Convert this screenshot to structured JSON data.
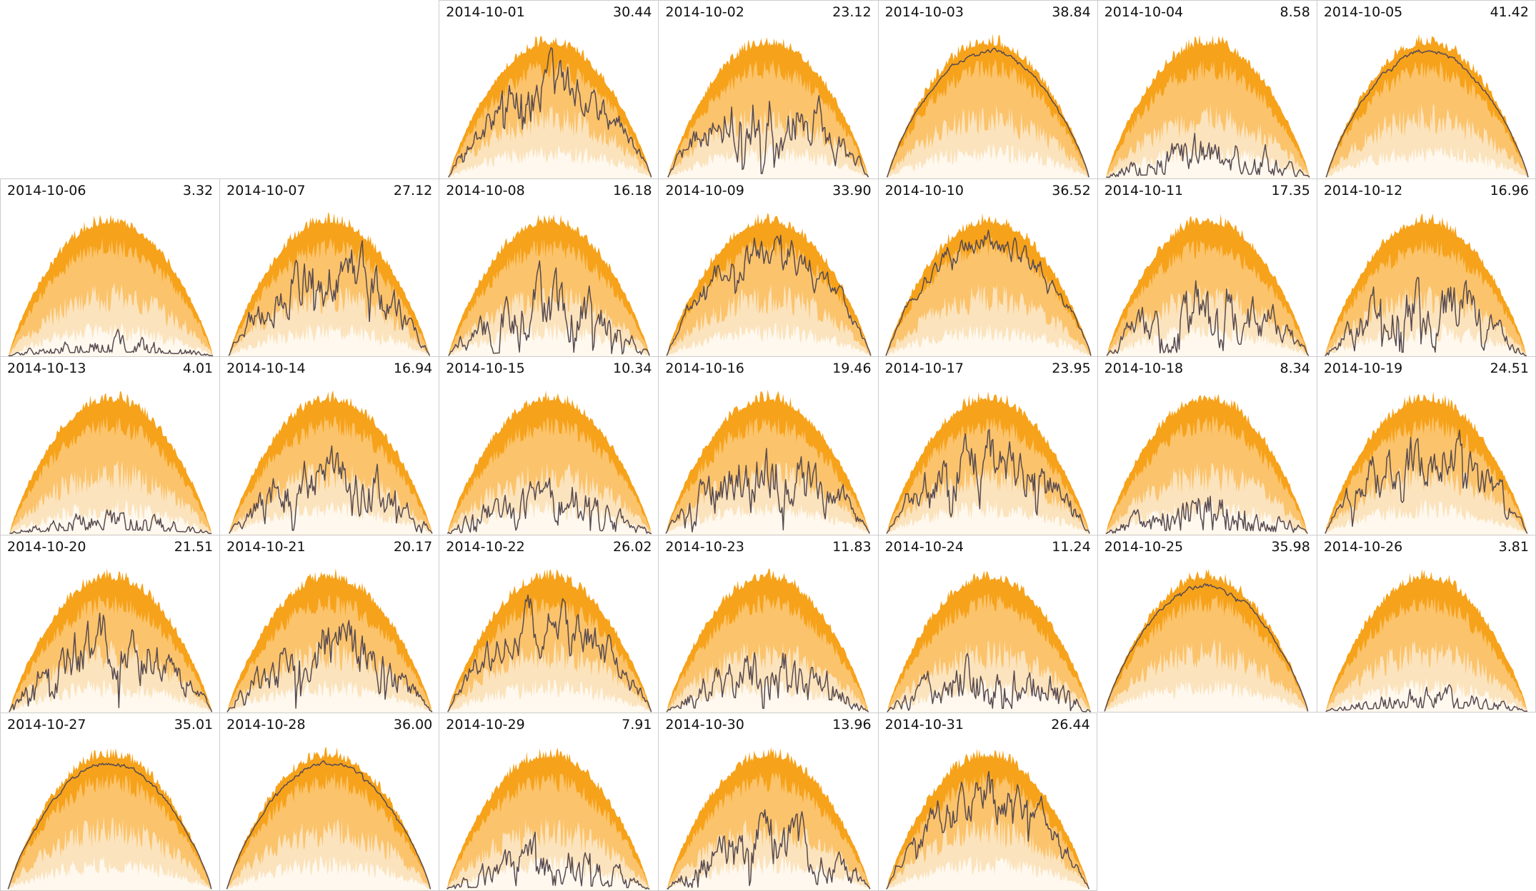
{
  "page": {
    "background": "#ffffff",
    "border_color": "#cccccc",
    "label_color": "#111111"
  },
  "chart_data": {
    "type": "area",
    "title": "",
    "xlabel": "",
    "ylabel": "",
    "layout": {
      "grid_columns": 7,
      "grid_rows": 5,
      "first_subplot_grid_index": 2,
      "axes_hidden": true,
      "legend": "none",
      "description": "Calendar grid of daily profile subplots: nested orange envelope bands (clear-sky/percentile range by time of day) with a dark measured line; date at top-left and daily total at top-right of each cell."
    },
    "style": {
      "envelope_bands": [
        {
          "name": "outer-band",
          "color": "#f6a21b",
          "level": 1.0
        },
        {
          "name": "mid-band",
          "color": "#fbc36b",
          "level": 0.9
        },
        {
          "name": "inner-band",
          "color": "#fbe3bd",
          "level": 0.56
        },
        {
          "name": "core-band",
          "color": "#fef8ee",
          "level": 0.26
        }
      ],
      "measured_line_color": "#574a50"
    },
    "subplots": [
      {
        "date": "2014-10-01",
        "value": 30.44,
        "value_label": "30.44"
      },
      {
        "date": "2014-10-02",
        "value": 23.12,
        "value_label": "23.12"
      },
      {
        "date": "2014-10-03",
        "value": 38.84,
        "value_label": "38.84"
      },
      {
        "date": "2014-10-04",
        "value": 8.58,
        "value_label": "8.58"
      },
      {
        "date": "2014-10-05",
        "value": 41.42,
        "value_label": "41.42"
      },
      {
        "date": "2014-10-06",
        "value": 3.32,
        "value_label": "3.32"
      },
      {
        "date": "2014-10-07",
        "value": 27.12,
        "value_label": "27.12"
      },
      {
        "date": "2014-10-08",
        "value": 16.18,
        "value_label": "16.18"
      },
      {
        "date": "2014-10-09",
        "value": 33.9,
        "value_label": "33.90"
      },
      {
        "date": "2014-10-10",
        "value": 36.52,
        "value_label": "36.52"
      },
      {
        "date": "2014-10-11",
        "value": 17.35,
        "value_label": "17.35"
      },
      {
        "date": "2014-10-12",
        "value": 16.96,
        "value_label": "16.96"
      },
      {
        "date": "2014-10-13",
        "value": 4.01,
        "value_label": "4.01"
      },
      {
        "date": "2014-10-14",
        "value": 16.94,
        "value_label": "16.94"
      },
      {
        "date": "2014-10-15",
        "value": 10.34,
        "value_label": "10.34"
      },
      {
        "date": "2014-10-16",
        "value": 19.46,
        "value_label": "19.46"
      },
      {
        "date": "2014-10-17",
        "value": 23.95,
        "value_label": "23.95"
      },
      {
        "date": "2014-10-18",
        "value": 8.34,
        "value_label": "8.34"
      },
      {
        "date": "2014-10-19",
        "value": 24.51,
        "value_label": "24.51"
      },
      {
        "date": "2014-10-20",
        "value": 21.51,
        "value_label": "21.51"
      },
      {
        "date": "2014-10-21",
        "value": 20.17,
        "value_label": "20.17"
      },
      {
        "date": "2014-10-22",
        "value": 26.02,
        "value_label": "26.02"
      },
      {
        "date": "2014-10-23",
        "value": 11.83,
        "value_label": "11.83"
      },
      {
        "date": "2014-10-24",
        "value": 11.24,
        "value_label": "11.24"
      },
      {
        "date": "2014-10-25",
        "value": 35.98,
        "value_label": "35.98"
      },
      {
        "date": "2014-10-26",
        "value": 3.81,
        "value_label": "3.81"
      },
      {
        "date": "2014-10-27",
        "value": 35.01,
        "value_label": "35.01"
      },
      {
        "date": "2014-10-28",
        "value": 36.0,
        "value_label": "36.00"
      },
      {
        "date": "2014-10-29",
        "value": 7.91,
        "value_label": "7.91"
      },
      {
        "date": "2014-10-30",
        "value": 13.96,
        "value_label": "13.96"
      },
      {
        "date": "2014-10-31",
        "value": 26.44,
        "value_label": "26.44"
      }
    ]
  }
}
